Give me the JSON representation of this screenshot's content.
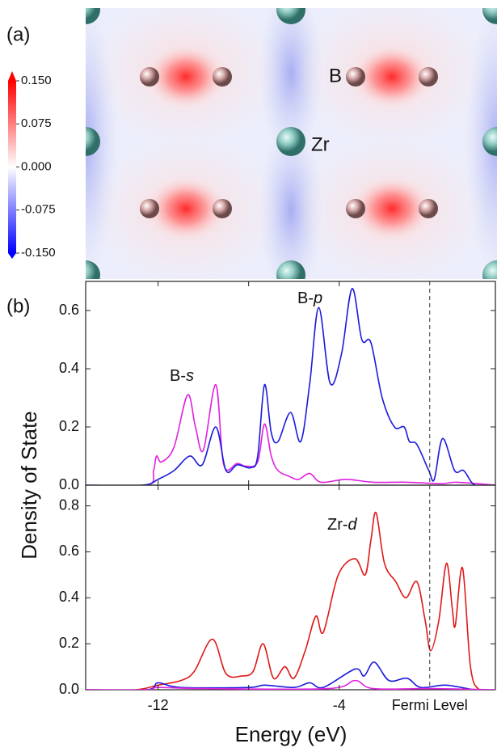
{
  "panel_a": {
    "label": "(a)",
    "colorbar": {
      "lim": [
        -0.15,
        0.15
      ],
      "ticks": [
        {
          "value": 0.15,
          "label": "0.150"
        },
        {
          "value": 0.075,
          "label": "0.075"
        },
        {
          "value": 0,
          "label": "0.000"
        },
        {
          "value": -0.075,
          "label": "-0.075"
        },
        {
          "value": -0.15,
          "label": "-0.150"
        }
      ]
    },
    "atom_labels": [
      "B",
      "Zr"
    ]
  },
  "chart_data": [
    {
      "type": "line",
      "label": "(b)",
      "ylabel": "Density of State",
      "xlim": [
        -15.2,
        2.9
      ],
      "ylim": [
        0,
        0.7
      ],
      "yticks": [
        {
          "value": 0,
          "label": "0.0"
        },
        0.2,
        0.4,
        0.6
      ],
      "series": [
        {
          "name": "B-s",
          "color": "#e020e0",
          "x": [
            -15.2,
            -12.5,
            -12.2,
            -12.07,
            -11.85,
            -11.3,
            -10.7,
            -10.35,
            -10.0,
            -9.45,
            -9.1,
            -8.5,
            -8.1,
            -7.6,
            -7.3,
            -7.0,
            -6.7,
            -6.2,
            -5.8,
            -5.3,
            -4.8,
            -3.7,
            -2.5,
            -1,
            0.5,
            1.2,
            2.9
          ],
          "values": [
            0,
            0,
            0.05,
            0.1,
            0.08,
            0.13,
            0.31,
            0.2,
            0.12,
            0.345,
            0.07,
            0.075,
            0.065,
            0.08,
            0.21,
            0.1,
            0.05,
            0.03,
            0.02,
            0.04,
            0.01,
            0.02,
            0.01,
            0.01,
            0.005,
            0.01,
            0
          ]
        },
        {
          "name": "B-p",
          "color": "#1a1adc",
          "x": [
            -15.2,
            -12.7,
            -12,
            -11.3,
            -10.6,
            -10.05,
            -9.45,
            -9.0,
            -8.5,
            -7.9,
            -7.6,
            -7.3,
            -7.0,
            -6.7,
            -6.15,
            -5.7,
            -5.3,
            -4.9,
            -4.4,
            -3.9,
            -3.43,
            -3.0,
            -2.6,
            -2.1,
            -1.56,
            -1.13,
            -0.9,
            -0.57,
            -0.04,
            0.2,
            0.57,
            1.1,
            1.5,
            2.0,
            2.9
          ],
          "values": [
            0,
            0,
            0.02,
            0.05,
            0.1,
            0.07,
            0.2,
            0.05,
            0.07,
            0.06,
            0.1,
            0.345,
            0.18,
            0.15,
            0.25,
            0.15,
            0.35,
            0.61,
            0.35,
            0.45,
            0.675,
            0.5,
            0.49,
            0.3,
            0.2,
            0.2,
            0.15,
            0.14,
            0.05,
            0.02,
            0.16,
            0.05,
            0.05,
            0,
            0
          ]
        }
      ]
    },
    {
      "type": "line",
      "xlabel": "Energy (eV)",
      "xlim": [
        -15.2,
        2.9
      ],
      "ylim": [
        0,
        0.89
      ],
      "xticks": [
        -12,
        -4
      ],
      "xminor": [
        -8
      ],
      "yticks": [
        {
          "value": 0,
          "label": "0.0"
        },
        0.2,
        0.4,
        0.6,
        0.8
      ],
      "fermi_level": {
        "x": 0,
        "label": "Fermi Level"
      },
      "series": [
        {
          "name": "Zr-d",
          "color": "#e01818",
          "x": [
            -15.2,
            -13,
            -12,
            -11,
            -10.4,
            -9.6,
            -9.0,
            -8.3,
            -7.8,
            -7.36,
            -6.9,
            -6.4,
            -6,
            -5.5,
            -5.03,
            -4.7,
            -4.04,
            -3.3,
            -2.85,
            -2.6,
            -2.37,
            -2.0,
            -1.5,
            -1.05,
            -0.57,
            -0.2,
            0.04,
            0.4,
            0.74,
            1.0,
            1.13,
            1.45,
            1.8,
            2.2,
            2.9
          ],
          "values": [
            0,
            0,
            0.02,
            0.04,
            0.08,
            0.22,
            0.07,
            0.06,
            0.08,
            0.2,
            0.05,
            0.1,
            0.05,
            0.17,
            0.32,
            0.25,
            0.5,
            0.57,
            0.5,
            0.65,
            0.77,
            0.55,
            0.47,
            0.4,
            0.47,
            0.3,
            0.17,
            0.3,
            0.55,
            0.35,
            0.28,
            0.53,
            0.1,
            0,
            0
          ]
        },
        {
          "color": "#1a1adc",
          "x": [
            -15.2,
            -12.5,
            -12,
            -11,
            -8,
            -7.3,
            -6,
            -5.3,
            -4.7,
            -3.3,
            -2.9,
            -2.45,
            -1.8,
            -1,
            -0.4,
            0.7,
            2,
            2.9
          ],
          "values": [
            0,
            0,
            0.03,
            0.01,
            0.01,
            0.02,
            0.01,
            0.03,
            0.01,
            0.09,
            0.06,
            0.12,
            0.04,
            0.05,
            0.01,
            0.02,
            0,
            0
          ]
        },
        {
          "color": "#e020e0",
          "x": [
            -15.2,
            -12.5,
            -12,
            -10,
            -4.5,
            -3.3,
            -2.5,
            0,
            2.9
          ],
          "values": [
            0,
            0,
            0.01,
            0.005,
            0.005,
            0.04,
            0.005,
            0.005,
            0
          ]
        }
      ]
    }
  ]
}
